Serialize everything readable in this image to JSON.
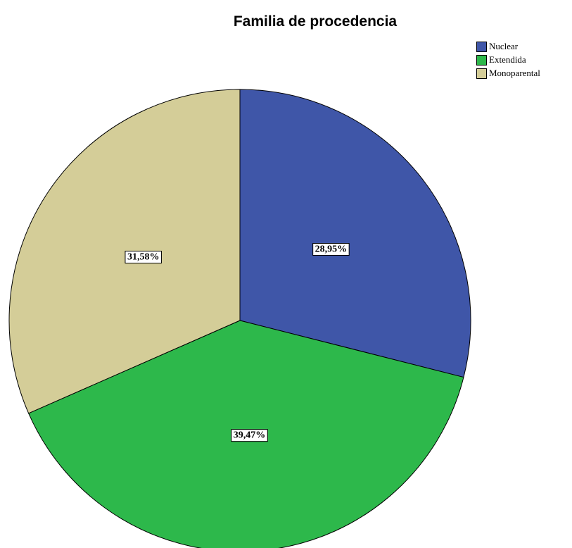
{
  "chart_data": {
    "type": "pie",
    "title": "Familia de procedencia",
    "categories": [
      "Nuclear",
      "Extendida",
      "Monoparental"
    ],
    "values": [
      28.95,
      39.47,
      31.58
    ],
    "value_labels": [
      "28,95%",
      "39,47%",
      "31,58%"
    ],
    "colors": [
      "#3f56a8",
      "#2db84b",
      "#d4cd98"
    ],
    "legend": "top-right"
  }
}
